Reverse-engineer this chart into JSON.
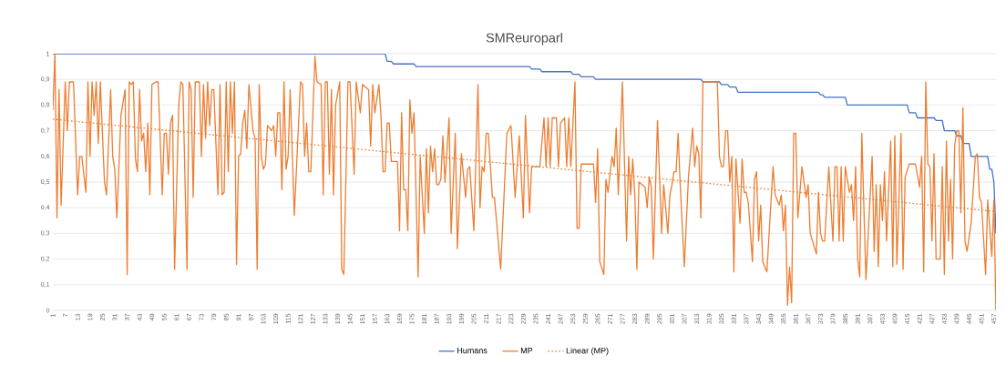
{
  "chart_data": {
    "type": "line",
    "title": "SMReuroparl",
    "xlim": [
      1,
      458
    ],
    "ylim": [
      0,
      1
    ],
    "grid": "y",
    "legend": "bottom",
    "xticks": [
      1,
      7,
      13,
      19,
      25,
      31,
      37,
      43,
      49,
      55,
      61,
      67,
      73,
      79,
      85,
      91,
      97,
      103,
      109,
      115,
      121,
      127,
      133,
      139,
      145,
      151,
      157,
      163,
      169,
      175,
      181,
      187,
      193,
      199,
      205,
      211,
      217,
      223,
      229,
      235,
      241,
      247,
      253,
      259,
      265,
      271,
      277,
      283,
      289,
      295,
      301,
      307,
      313,
      319,
      325,
      331,
      337,
      343,
      349,
      355,
      361,
      367,
      373,
      379,
      385,
      391,
      397,
      403,
      409,
      415,
      421,
      427,
      433,
      439,
      445,
      451,
      457
    ],
    "yticks": [
      0,
      {
        "value": 0.1,
        "label": "0,1"
      },
      {
        "value": 0.2,
        "label": "0,2"
      },
      {
        "value": 0.3,
        "label": "0,3"
      },
      {
        "value": 0.4,
        "label": "0,4"
      },
      {
        "value": 0.5,
        "label": "0,5"
      },
      {
        "value": 0.6,
        "label": "0,6"
      },
      {
        "value": 0.7,
        "label": "0,7"
      },
      {
        "value": 0.8,
        "label": "0,8"
      },
      {
        "value": 0.9,
        "label": "0,9"
      },
      1
    ],
    "series": [
      {
        "name": "Humans",
        "color": "#4472c4",
        "x": [
          1,
          162,
          163,
          165,
          166,
          176,
          177,
          232,
          233,
          237,
          238,
          252,
          253,
          256,
          257,
          263,
          264,
          315,
          316,
          324,
          325,
          328,
          329,
          332,
          333,
          372,
          373,
          374,
          375,
          385,
          386,
          415,
          416,
          419,
          420,
          428,
          429,
          432,
          433,
          438,
          439,
          441,
          442,
          445,
          446,
          454,
          455,
          456,
          457,
          458
        ],
        "values": [
          1,
          1,
          0.97,
          0.97,
          0.96,
          0.96,
          0.95,
          0.95,
          0.94,
          0.94,
          0.93,
          0.93,
          0.92,
          0.92,
          0.91,
          0.91,
          0.9,
          0.9,
          0.89,
          0.89,
          0.88,
          0.88,
          0.87,
          0.87,
          0.85,
          0.85,
          0.84,
          0.84,
          0.83,
          0.83,
          0.8,
          0.8,
          0.77,
          0.77,
          0.75,
          0.75,
          0.74,
          0.74,
          0.7,
          0.7,
          0.68,
          0.68,
          0.65,
          0.65,
          0.6,
          0.6,
          0.55,
          0.55,
          0.5,
          0.3
        ]
      },
      {
        "name": "MP",
        "color": "#ed7d31",
        "x": [
          1,
          2,
          3,
          4,
          5,
          7,
          8,
          9,
          11,
          13,
          14,
          15,
          17,
          18,
          19,
          20,
          21,
          22,
          23,
          24,
          26,
          27,
          29,
          30,
          31,
          32,
          34,
          36,
          37,
          38,
          39,
          40,
          41,
          42,
          43,
          44,
          45,
          46,
          47,
          48,
          49,
          51,
          52,
          54,
          55,
          56,
          57,
          58,
          59,
          60,
          62,
          63,
          64,
          66,
          67,
          68,
          69,
          70,
          72,
          73,
          74,
          75,
          76,
          77,
          78,
          79,
          81,
          82,
          83,
          84,
          85,
          86,
          87,
          88,
          89,
          90,
          91,
          92,
          93,
          94,
          95,
          96,
          98,
          99,
          100,
          101,
          102,
          103,
          104,
          105,
          107,
          108,
          109,
          110,
          111,
          112,
          113,
          114,
          115,
          116,
          118,
          121,
          122,
          123,
          124,
          125,
          126,
          128,
          129,
          131,
          132,
          133,
          134,
          135,
          136,
          137,
          138,
          140,
          141,
          142,
          144,
          145,
          147,
          148,
          150,
          151,
          154,
          155,
          156,
          157,
          159,
          160,
          161,
          162,
          163,
          164,
          165,
          168,
          169,
          170,
          171,
          172,
          173,
          174,
          175,
          176,
          178,
          179,
          181,
          182,
          183,
          184,
          185,
          186,
          187,
          188,
          189,
          190,
          191,
          193,
          194,
          196,
          197,
          199,
          201,
          202,
          203,
          205,
          207,
          208,
          209,
          210,
          211,
          212,
          214,
          215,
          218,
          221,
          223,
          225,
          227,
          229,
          230,
          232,
          233,
          237,
          239,
          240,
          241,
          242,
          243,
          245,
          246,
          247,
          249,
          250,
          251,
          252,
          254,
          255,
          256,
          257,
          263,
          264,
          265,
          266,
          268,
          269,
          270,
          272,
          273,
          274,
          275,
          277,
          279,
          280,
          281,
          282,
          283,
          284,
          285,
          288,
          289,
          290,
          291,
          292,
          294,
          296,
          297,
          299,
          300,
          301,
          302,
          303,
          304,
          305,
          307,
          309,
          311,
          312,
          313,
          314,
          315,
          316,
          323,
          324,
          325,
          326,
          327,
          328,
          329,
          330,
          331,
          332,
          334,
          335,
          336,
          337,
          338,
          340,
          341,
          342,
          343,
          344,
          345,
          347,
          350,
          351,
          353,
          354,
          355,
          356,
          357,
          358,
          359,
          360,
          361,
          362,
          364,
          366,
          367,
          368,
          371,
          372,
          373,
          374,
          375,
          377,
          379,
          380,
          381,
          382,
          383,
          384,
          385,
          387,
          388,
          389,
          390,
          391,
          392,
          393,
          395,
          398,
          399,
          400,
          401,
          402,
          403,
          404,
          405,
          407,
          408,
          409,
          410,
          412,
          413,
          414,
          416,
          419,
          421,
          422,
          423,
          424,
          425,
          426,
          427,
          428,
          429,
          431,
          432,
          433,
          434,
          435,
          436,
          437,
          438,
          439,
          440,
          441,
          442,
          443,
          444,
          446,
          448,
          449,
          450,
          451,
          453,
          454,
          456,
          457,
          458
        ],
        "values": [
          0.78,
          1.0,
          0.36,
          0.86,
          0.41,
          0.89,
          0.7,
          0.89,
          0.89,
          0.45,
          0.6,
          0.6,
          0.46,
          0.89,
          0.6,
          0.89,
          0.76,
          0.89,
          0.65,
          0.89,
          0.5,
          0.45,
          0.86,
          0.6,
          0.55,
          0.36,
          0.76,
          0.86,
          0.14,
          0.89,
          0.88,
          0.89,
          0.59,
          0.54,
          0.86,
          0.66,
          0.69,
          0.54,
          0.73,
          0.45,
          0.88,
          0.89,
          0.89,
          0.45,
          0.69,
          0.69,
          0.53,
          0.73,
          0.76,
          0.16,
          0.8,
          0.89,
          0.88,
          0.16,
          0.89,
          0.86,
          0.44,
          0.89,
          0.89,
          0.6,
          0.88,
          0.67,
          0.89,
          0.72,
          0.86,
          0.86,
          0.45,
          0.88,
          0.45,
          0.46,
          0.89,
          0.54,
          0.89,
          0.69,
          0.89,
          0.18,
          0.6,
          0.61,
          0.73,
          0.78,
          0.63,
          0.88,
          0.7,
          0.67,
          0.16,
          0.88,
          0.6,
          0.55,
          0.57,
          0.72,
          0.7,
          0.72,
          0.6,
          0.77,
          0.77,
          0.47,
          0.89,
          0.55,
          0.6,
          0.86,
          0.37,
          0.89,
          0.88,
          0.6,
          0.73,
          0.54,
          0.54,
          0.99,
          0.89,
          0.88,
          0.45,
          0.89,
          0.89,
          0.53,
          0.86,
          0.45,
          0.8,
          0.89,
          0.16,
          0.14,
          0.89,
          0.89,
          0.53,
          0.89,
          0.77,
          0.88,
          0.86,
          0.64,
          0.88,
          0.77,
          0.88,
          0.76,
          0.54,
          0.54,
          0.73,
          0.73,
          0.58,
          0.58,
          0.31,
          0.77,
          0.47,
          0.47,
          0.31,
          0.82,
          0.69,
          0.77,
          0.13,
          0.6,
          0.3,
          0.63,
          0.38,
          0.64,
          0.54,
          0.63,
          0.49,
          0.49,
          0.51,
          0.68,
          0.5,
          0.75,
          0.3,
          0.69,
          0.24,
          0.61,
          0.44,
          0.55,
          0.56,
          0.31,
          0.88,
          0.4,
          0.56,
          0.54,
          0.69,
          0.69,
          0.44,
          0.44,
          0.16,
          0.69,
          0.72,
          0.44,
          0.68,
          0.36,
          0.76,
          0.38,
          0.56,
          0.56,
          0.75,
          0.56,
          0.75,
          0.56,
          0.75,
          0.75,
          0.56,
          0.73,
          0.75,
          0.56,
          0.75,
          0.56,
          0.89,
          0.32,
          0.32,
          0.57,
          0.57,
          0.42,
          0.63,
          0.19,
          0.14,
          0.51,
          0.46,
          0.6,
          0.56,
          0.71,
          0.45,
          0.89,
          0.27,
          0.6,
          0.45,
          0.59,
          0.45,
          0.16,
          0.5,
          0.48,
          0.4,
          0.52,
          0.48,
          0.2,
          0.74,
          0.3,
          0.49,
          0.3,
          0.45,
          0.49,
          0.54,
          0.54,
          0.69,
          0.49,
          0.17,
          0.52,
          0.71,
          0.56,
          0.64,
          0.61,
          0.36,
          0.89,
          0.89,
          0.6,
          0.56,
          0.56,
          0.7,
          0.7,
          0.5,
          0.6,
          0.15,
          0.59,
          0.34,
          0.59,
          0.46,
          0.46,
          0.42,
          0.19,
          0.51,
          0.54,
          0.27,
          0.41,
          0.19,
          0.15,
          0.56,
          0.45,
          0.41,
          0.45,
          0.31,
          0.41,
          0.02,
          0.17,
          0.03,
          0.69,
          0.69,
          0.36,
          0.56,
          0.44,
          0.49,
          0.3,
          0.22,
          0.46,
          0.3,
          0.27,
          0.27,
          0.56,
          0.27,
          0.56,
          0.56,
          0.27,
          0.56,
          0.27,
          0.56,
          0.46,
          0.49,
          0.35,
          0.56,
          0.2,
          0.13,
          0.69,
          0.12,
          0.6,
          0.23,
          0.49,
          0.17,
          0.49,
          0.35,
          0.54,
          0.27,
          0.66,
          0.17,
          0.68,
          0.18,
          0.69,
          0.16,
          0.52,
          0.57,
          0.57,
          0.48,
          0.6,
          0.15,
          0.89,
          0.57,
          0.56,
          0.27,
          0.61,
          0.2,
          0.2,
          0.56,
          0.14,
          0.66,
          0.27,
          0.51,
          0.2,
          0.64,
          0.7,
          0.7,
          0.38,
          0.79,
          0.27,
          0.23,
          0.34,
          0.6,
          0.61,
          0.44,
          0.42,
          0.14,
          0.43,
          0.21,
          0.43,
          0.0
        ]
      },
      {
        "name": "Linear (MP)",
        "color": "#ed7d31",
        "line_style": "dotted",
        "x": [
          1,
          458
        ],
        "values": [
          0.745,
          0.385
        ]
      }
    ]
  }
}
